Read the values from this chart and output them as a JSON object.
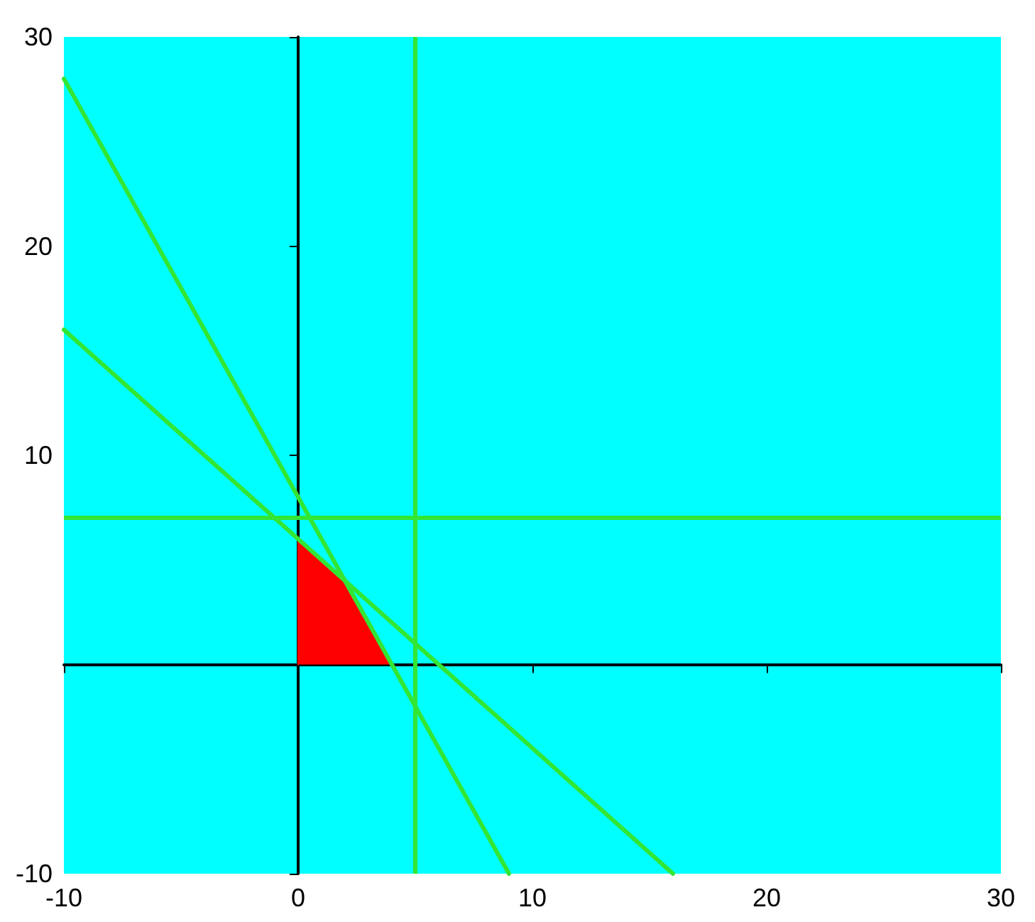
{
  "chart_data": {
    "type": "line",
    "xlim": [
      -10,
      30
    ],
    "ylim": [
      -10,
      30
    ],
    "xticks": [
      -10,
      0,
      10,
      20,
      30
    ],
    "yticks": [
      -10,
      {
        "value": 0,
        "label": null
      },
      10,
      20,
      30
    ],
    "series": [
      {
        "color": "#33e633",
        "x": [
          -10,
          9
        ],
        "values": [
          28,
          -10
        ]
      },
      {
        "color": "#33e633",
        "x": [
          -10,
          16
        ],
        "values": [
          16,
          -10
        ]
      },
      {
        "type": "area",
        "color": "#ff0000",
        "x": [
          0,
          0,
          2,
          4
        ],
        "values": [
          0,
          6,
          4,
          0
        ]
      }
    ],
    "ref_lines": [
      {
        "axis": "x",
        "value": 5,
        "color": "#33e633"
      },
      {
        "axis": "y",
        "value": 7,
        "color": "#33e633"
      }
    ],
    "marker": "none"
  }
}
